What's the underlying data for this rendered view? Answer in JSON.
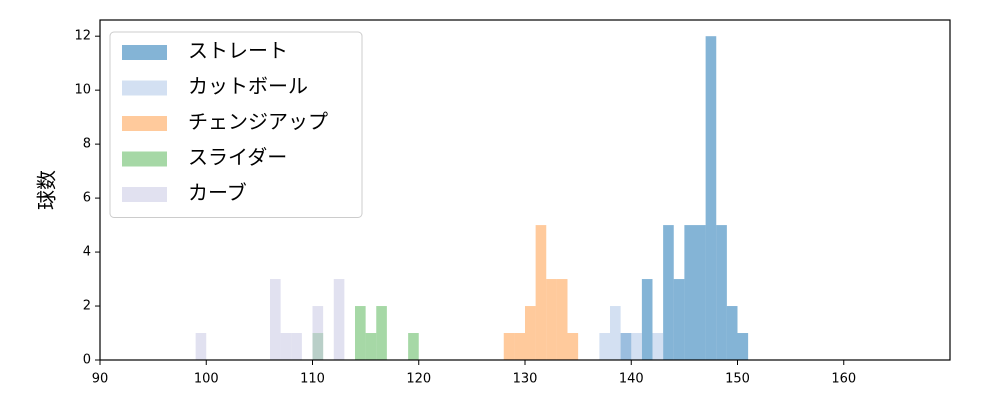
{
  "chart_data": {
    "type": "histogram",
    "ylabel": "球数",
    "xlim": [
      90,
      170
    ],
    "ylim": [
      0,
      12.6
    ],
    "xticks": [
      90,
      100,
      110,
      120,
      130,
      140,
      150,
      160
    ],
    "yticks": [
      0,
      2,
      4,
      6,
      8,
      10,
      12
    ],
    "legend": "upper left",
    "alpha": 0.55,
    "series": [
      {
        "name": "ストレート",
        "color": "#1f77b4",
        "bins": [
          139,
          140,
          141,
          142,
          143,
          144,
          145,
          146,
          147,
          148,
          149,
          150,
          151
        ],
        "counts": [
          1,
          0,
          3,
          0,
          5,
          3,
          5,
          5,
          12,
          5,
          2,
          1
        ]
      },
      {
        "name": "カットボール",
        "color": "#aec7e8",
        "bins": [
          137,
          138,
          139,
          140,
          141,
          142,
          143
        ],
        "counts": [
          1,
          2,
          1,
          1,
          0,
          1
        ]
      },
      {
        "name": "チェンジアップ",
        "color": "#ff9f4a",
        "bins": [
          128,
          129,
          130,
          131,
          132,
          133,
          134,
          135
        ],
        "counts": [
          1,
          1,
          2,
          5,
          3,
          3,
          1
        ]
      },
      {
        "name": "スライダー",
        "color": "#5cb85c",
        "bins": [
          110,
          111,
          112,
          113,
          114,
          115,
          116,
          117,
          118,
          119,
          120
        ],
        "counts": [
          1,
          0,
          0,
          0,
          2,
          1,
          2,
          0,
          0,
          1
        ]
      },
      {
        "name": "カーブ",
        "color": "#c9c9e3",
        "bins": [
          99,
          100,
          101,
          102,
          103,
          104,
          105,
          106,
          107,
          108,
          109,
          110,
          111,
          112,
          113
        ],
        "counts": [
          1,
          0,
          0,
          0,
          0,
          0,
          0,
          3,
          1,
          1,
          0,
          2,
          0,
          3
        ]
      }
    ]
  }
}
